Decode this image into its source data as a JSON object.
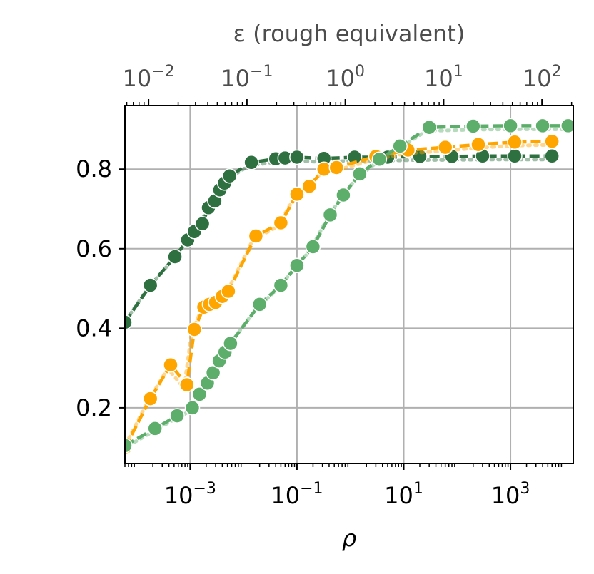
{
  "chart_data": {
    "type": "line",
    "xlabel": "ρ",
    "top_xlabel": "ε (rough equivalent)",
    "ylabel": "",
    "x_scale": "log",
    "xlim": [
      6e-05,
      15000
    ],
    "ylim": [
      0.06,
      0.96
    ],
    "grid": true,
    "x_ticks": [
      {
        "value": 0.001,
        "base": "10",
        "exp": "−3"
      },
      {
        "value": 0.1,
        "base": "10",
        "exp": "−1"
      },
      {
        "value": 10,
        "base": "10",
        "exp": "1"
      },
      {
        "value": 1000,
        "base": "10",
        "exp": "3"
      }
    ],
    "y_ticks": [
      {
        "value": 0.2,
        "label": "0.2"
      },
      {
        "value": 0.4,
        "label": "0.4"
      },
      {
        "value": 0.6,
        "label": "0.6"
      },
      {
        "value": 0.8,
        "label": "0.8"
      }
    ],
    "top_ticks": [
      {
        "value": 0.01,
        "base": "10",
        "exp": "−2"
      },
      {
        "value": 0.1,
        "base": "10",
        "exp": "−1"
      },
      {
        "value": 1,
        "base": "10",
        "exp": "0"
      },
      {
        "value": 10,
        "base": "10",
        "exp": "1"
      },
      {
        "value": 100,
        "base": "10",
        "exp": "2"
      }
    ],
    "top_axis_range": [
      0.00575,
      208
    ],
    "series": [
      {
        "color": "#2e7040",
        "x": [
          6e-05,
          0.00018,
          0.00052,
          0.0009,
          0.0012,
          0.0017,
          0.0022,
          0.0029,
          0.0036,
          0.0044,
          0.0055,
          0.014,
          0.04,
          0.06,
          0.1,
          0.32,
          1.2,
          5,
          20,
          80,
          300,
          1200,
          6000
        ],
        "y": [
          0.415,
          0.508,
          0.58,
          0.622,
          0.643,
          0.663,
          0.703,
          0.72,
          0.748,
          0.765,
          0.783,
          0.817,
          0.826,
          0.828,
          0.83,
          0.827,
          0.83,
          0.83,
          0.832,
          0.832,
          0.833,
          0.833,
          0.833
        ]
      },
      {
        "color": "#ffa500",
        "x": [
          6e-05,
          0.00018,
          0.00043,
          0.00087,
          0.0012,
          0.0018,
          0.0023,
          0.003,
          0.004,
          0.0052,
          0.017,
          0.05,
          0.1,
          0.17,
          0.32,
          0.55,
          3,
          12,
          60,
          250,
          1200,
          6000
        ],
        "y": [
          0.1,
          0.223,
          0.308,
          0.258,
          0.397,
          0.453,
          0.46,
          0.465,
          0.48,
          0.493,
          0.632,
          0.665,
          0.737,
          0.757,
          0.8,
          0.804,
          0.832,
          0.848,
          0.855,
          0.862,
          0.868,
          0.87
        ]
      },
      {
        "color": "#5dae6b",
        "x": [
          6e-05,
          0.00022,
          0.00057,
          0.0011,
          0.0015,
          0.0021,
          0.0027,
          0.0035,
          0.0045,
          0.0057,
          0.02,
          0.05,
          0.1,
          0.2,
          0.42,
          0.74,
          1.5,
          3.5,
          8.5,
          30,
          200,
          1000,
          4000,
          12000
        ],
        "y": [
          0.105,
          0.148,
          0.18,
          0.2,
          0.234,
          0.262,
          0.288,
          0.318,
          0.34,
          0.362,
          0.46,
          0.508,
          0.558,
          0.605,
          0.685,
          0.735,
          0.788,
          0.825,
          0.858,
          0.905,
          0.908,
          0.909,
          0.909,
          0.909
        ]
      }
    ]
  }
}
